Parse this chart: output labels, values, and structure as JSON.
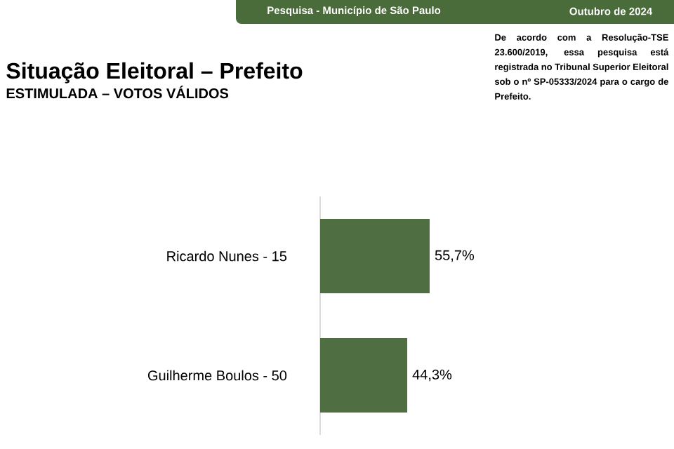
{
  "chart_data": {
    "type": "bar",
    "orientation": "horizontal",
    "title": "Situação Eleitoral – Prefeito",
    "subtitle": "ESTIMULADA – VOTOS VÁLIDOS",
    "annotations": [
      "Pesquisa - Município de São Paulo",
      "Outubro de 2024",
      "De acordo com a Resolução-TSE 23.600/2019, essa pesquisa está registrada no Tribunal Superior Eleitoral sob o nº SP-05333/2024 para o cargo de Prefeito."
    ],
    "categories": [
      "Ricardo Nunes - 15",
      "Guilherme Boulos - 50"
    ],
    "values": [
      55.7,
      44.3
    ],
    "value_labels": [
      "55,7%",
      "44,3%"
    ],
    "color": "#4f6f42"
  }
}
